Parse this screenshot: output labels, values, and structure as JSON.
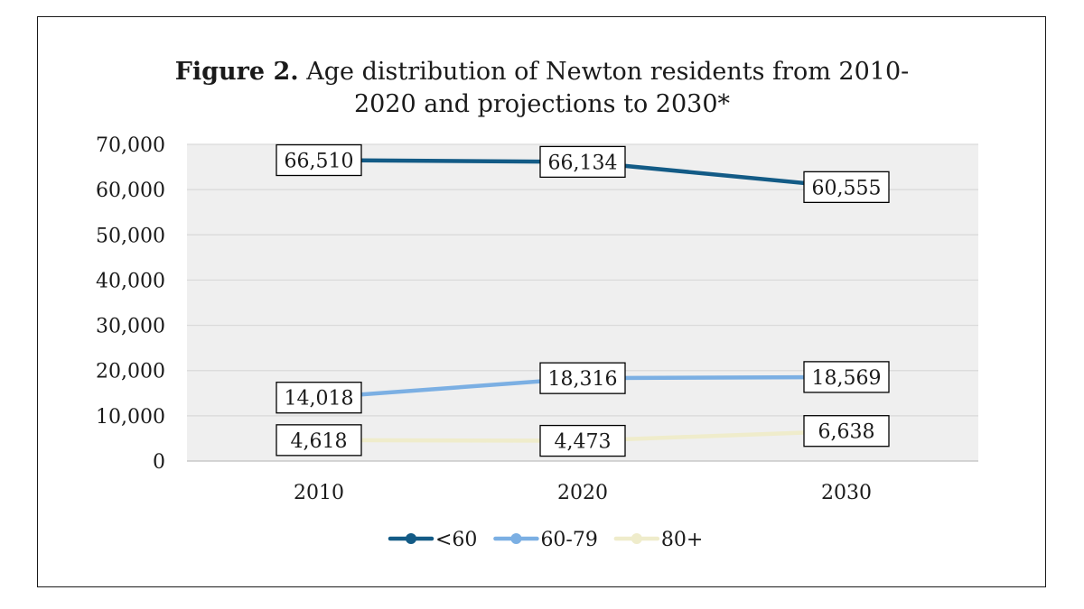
{
  "chart_data": {
    "type": "line",
    "title_prefix": "Figure 2.",
    "title_line1": "Age distribution of Newton residents from 2010-",
    "title_line2": "2020 and projections to 2030*",
    "categories": [
      "2010",
      "2020",
      "2030"
    ],
    "ylim": [
      0,
      70000
    ],
    "yticks": [
      0,
      10000,
      20000,
      30000,
      40000,
      50000,
      60000,
      70000
    ],
    "ytick_labels": [
      "0",
      "10,000",
      "20,000",
      "30,000",
      "40,000",
      "50,000",
      "60,000",
      "70,000"
    ],
    "grid": true,
    "legend_position": "bottom",
    "series": [
      {
        "name": "<60",
        "color": "#135b86",
        "values": [
          66510,
          66134,
          60555
        ],
        "labels": [
          "66,510",
          "66,134",
          "60,555"
        ]
      },
      {
        "name": "60-79",
        "color": "#7bafe3",
        "values": [
          14018,
          18316,
          18569
        ],
        "labels": [
          "14,018",
          "18,316",
          "18,569"
        ]
      },
      {
        "name": "80+",
        "color": "#efeccb",
        "values": [
          4618,
          4473,
          6638
        ],
        "labels": [
          "4,618",
          "4,473",
          "6,638"
        ]
      }
    ],
    "plot_background": "#efefef",
    "grid_color": "#d9d9d9"
  }
}
